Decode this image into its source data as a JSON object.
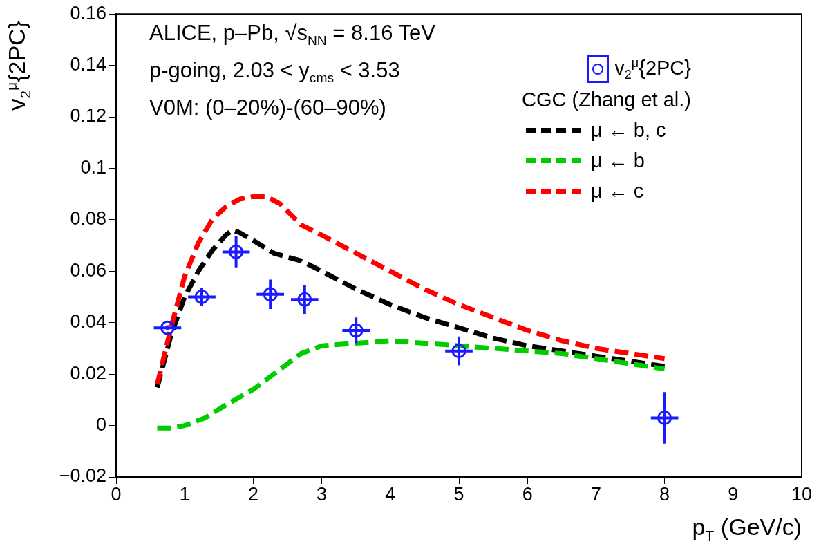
{
  "chart_data": {
    "type": "line",
    "xlabel": "p$_{T}$ (GeV/c)",
    "ylabel": "v$_{2}$$^{μ}${2PC}",
    "legend_title": "CGC (Zhang et al.)",
    "annotations": [
      "ALICE, p–Pb, √s$_{NN}$ = 8.16 TeV",
      "p-going, 2.03 < y$_{cms}$ < 3.53",
      "V0M: (0–20%)-(60–90%)"
    ],
    "xlim": [
      0,
      10
    ],
    "xticks": [
      0,
      1,
      2,
      3,
      4,
      5,
      6,
      7,
      8,
      9,
      10
    ],
    "ylim": [
      -0.02,
      0.16
    ],
    "yticks": [
      {
        "value": -0.02,
        "label": "−0.02"
      },
      0,
      0.02,
      0.04,
      0.06,
      0.08,
      0.1,
      0.12,
      0.14,
      0.16
    ],
    "grid": false,
    "legend": "top right",
    "series": [
      {
        "name": "v$_{2}$$^{μ}${2PC}",
        "type": "scatter",
        "color": "#1a1aff",
        "marker": "circle",
        "x": [
          0.75,
          1.25,
          1.75,
          2.25,
          2.75,
          3.5,
          5,
          8
        ],
        "values": [
          0.038,
          0.05,
          0.0675,
          0.051,
          0.049,
          0.037,
          0.029,
          0.003
        ],
        "errors": [
          0.001,
          0.0035,
          0.006,
          0.0057,
          0.0056,
          0.005,
          0.0056,
          0.01
        ],
        "xerrors": [
          0.2,
          0.2,
          0.2,
          0.2,
          0.2,
          0.2,
          0.2,
          0.2
        ]
      },
      {
        "name": "μ ← b, c",
        "color": "#000000",
        "line_style": "dashed",
        "marker": "none",
        "x": [
          0.6,
          0.8,
          1.0,
          1.2,
          1.4,
          1.6,
          1.7,
          1.8,
          2.0,
          2.3,
          2.7,
          3.0,
          3.5,
          4.0,
          4.5,
          5.0,
          5.5,
          6.0,
          6.5,
          7.0,
          7.5,
          8.0
        ],
        "values": [
          0.0148,
          0.035,
          0.05,
          0.06,
          0.068,
          0.074,
          0.076,
          0.075,
          0.072,
          0.067,
          0.064,
          0.06,
          0.053,
          0.047,
          0.042,
          0.038,
          0.034,
          0.031,
          0.029,
          0.027,
          0.025,
          0.023
        ]
      },
      {
        "name": "μ ← b",
        "color": "#00cc00",
        "line_style": "dashed",
        "marker": "none",
        "x": [
          0.6,
          0.8,
          1.0,
          1.3,
          1.6,
          2.0,
          2.4,
          2.7,
          3.0,
          3.5,
          4.0,
          4.5,
          5.0,
          5.5,
          6.0,
          6.5,
          7.0,
          7.5,
          8.0
        ],
        "values": [
          -0.001,
          -0.001,
          0.0,
          0.003,
          0.008,
          0.014,
          0.022,
          0.028,
          0.031,
          0.032,
          0.033,
          0.032,
          0.031,
          0.03,
          0.029,
          0.028,
          0.026,
          0.024,
          0.022
        ]
      },
      {
        "name": "μ ← c",
        "color": "#ff0000",
        "line_style": "dashed",
        "marker": "none",
        "x": [
          0.6,
          0.8,
          1.0,
          1.2,
          1.4,
          1.6,
          1.8,
          2.0,
          2.2,
          2.4,
          2.7,
          3.0,
          3.5,
          4.0,
          4.5,
          5.0,
          5.5,
          6.0,
          6.5,
          7.0,
          7.5,
          8.0
        ],
        "values": [
          0.016,
          0.038,
          0.058,
          0.071,
          0.08,
          0.085,
          0.088,
          0.089,
          0.089,
          0.086,
          0.078,
          0.074,
          0.067,
          0.06,
          0.053,
          0.047,
          0.042,
          0.037,
          0.033,
          0.03,
          0.028,
          0.026
        ]
      }
    ]
  }
}
